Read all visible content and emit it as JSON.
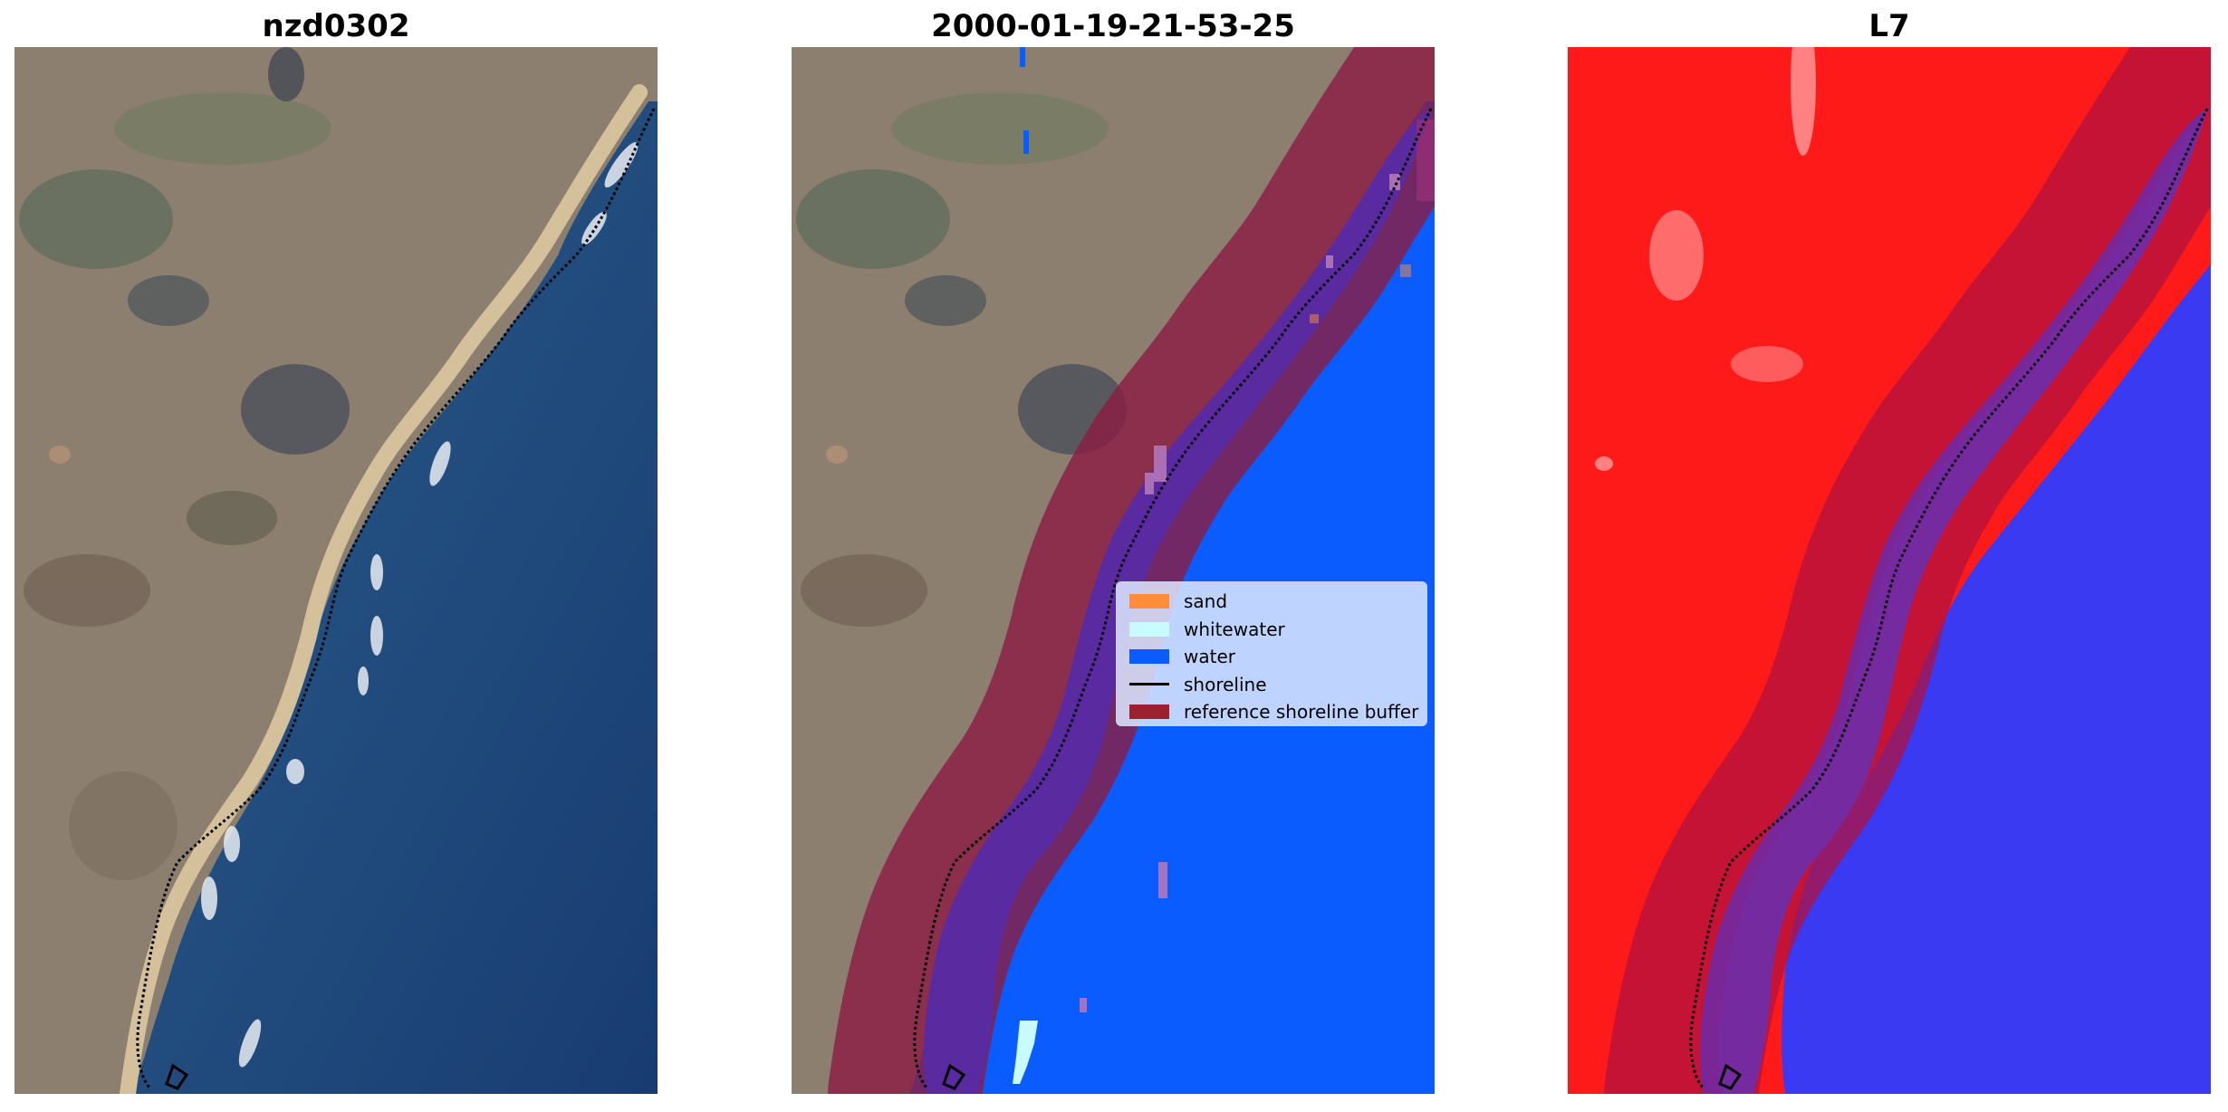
{
  "panels": [
    {
      "title": "nzd0302"
    },
    {
      "title": "2000-01-19-21-53-25"
    },
    {
      "title": "L7"
    }
  ],
  "legend": {
    "items": [
      {
        "label": "sand",
        "kind": "patch",
        "color": "#ff8c3a"
      },
      {
        "label": "whitewater",
        "kind": "patch",
        "color": "#c7fbff"
      },
      {
        "label": "water",
        "kind": "patch",
        "color": "#0b5cff"
      },
      {
        "label": "shoreline",
        "kind": "line",
        "color": "#000000"
      },
      {
        "label": "reference shoreline buffer",
        "kind": "patch",
        "color": "#9b2030"
      }
    ]
  },
  "colors": {
    "land": "#8e8070",
    "sea": "#1e4a80",
    "classified_water": "#0a5cff",
    "buffer": "#8b1d44",
    "index_land": "#ff1a1a",
    "index_water": "#3a3af2"
  }
}
